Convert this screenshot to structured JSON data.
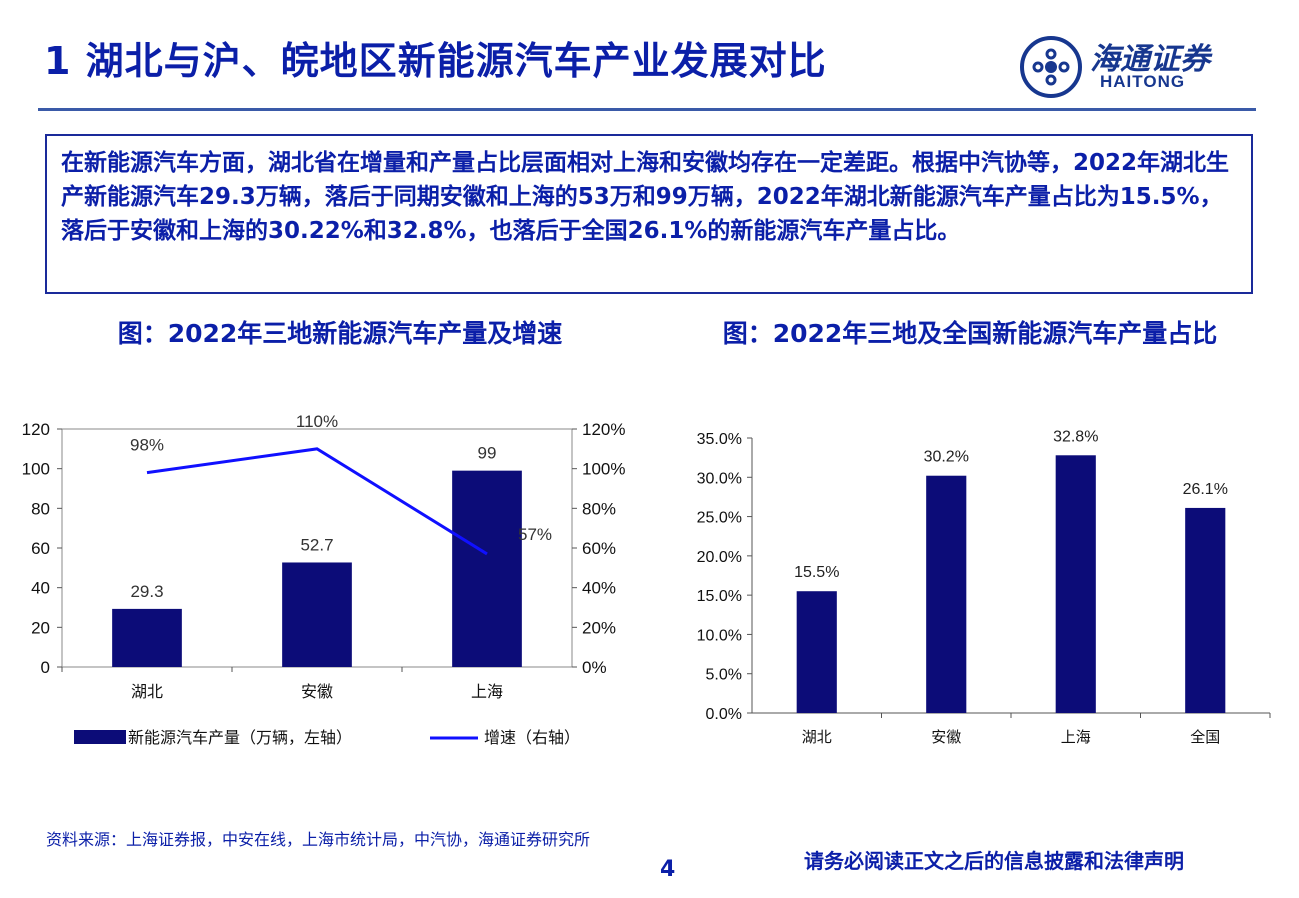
{
  "header": {
    "title": "1 湖北与沪、皖地区新能源汽车产业发展对比",
    "logo_cn": "海通证券",
    "logo_en": "HAITONG"
  },
  "summary": {
    "text": "在新能源汽车方面，湖北省在增量和产量占比层面相对上海和安徽均存在一定差距。根据中汽协等，2022年湖北生产新能源汽车29.3万辆，落后于同期安徽和上海的53万和99万辆，2022年湖北新能源汽车产量占比为15.5%，落后于安徽和上海的30.22%和32.8%，也落后于全国26.1%的新能源汽车产量占比。"
  },
  "chart_data": [
    {
      "type": "bar",
      "title": "图：2022年三地新能源汽车产量及增速",
      "categories": [
        "湖北",
        "安徽",
        "上海"
      ],
      "series": [
        {
          "name": "新能源汽车产量（万辆，左轴）",
          "type": "bar",
          "values": [
            29.3,
            52.7,
            99
          ],
          "labels": [
            "29.3",
            "52.7",
            "99"
          ]
        },
        {
          "name": "增速（右轴）",
          "type": "line",
          "values": [
            0.98,
            1.1,
            0.57
          ],
          "labels": [
            "98%",
            "110%",
            "57%"
          ]
        }
      ],
      "y_left_ticks": [
        "0",
        "20",
        "40",
        "60",
        "80",
        "100",
        "120"
      ],
      "y_right_ticks": [
        "0%",
        "20%",
        "40%",
        "60%",
        "80%",
        "100%",
        "120%"
      ],
      "ylim_left": [
        0,
        120
      ],
      "ylim_right": [
        0,
        1.2
      ],
      "legend_placement": "bottom",
      "colors": {
        "bar": "#0c0c78",
        "line": "#1010ff"
      }
    },
    {
      "type": "bar",
      "title": "图：2022年三地及全国新能源汽车产量占比",
      "categories": [
        "湖北",
        "安徽",
        "上海",
        "全国"
      ],
      "series": [
        {
          "values": [
            0.155,
            0.302,
            0.328,
            0.261
          ],
          "labels": [
            "15.5%",
            "30.2%",
            "32.8%",
            "26.1%"
          ]
        }
      ],
      "y_ticks": [
        "0.0%",
        "5.0%",
        "10.0%",
        "15.0%",
        "20.0%",
        "25.0%",
        "30.0%",
        "35.0%"
      ],
      "ylim": [
        0,
        0.35
      ],
      "colors": {
        "bar": "#0c0c78"
      }
    }
  ],
  "footer": {
    "source": "资料来源：上海证券报，中安在线，上海市统计局，中汽协，海通证券研究所",
    "page": "4",
    "disclaimer": "请务必阅读正文之后的信息披露和法律声明"
  }
}
